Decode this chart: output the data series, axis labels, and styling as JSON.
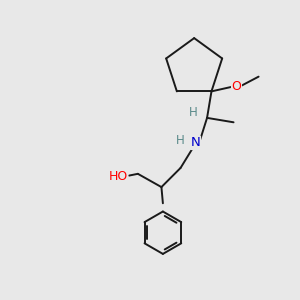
{
  "bg_color": "#e8e8e8",
  "bond_color": "#1a1a1a",
  "atom_colors": {
    "O": "#ff0000",
    "N": "#0000cc",
    "H": "#5a8a8a",
    "C": "#1a1a1a"
  },
  "figsize": [
    3.0,
    3.0
  ],
  "dpi": 100
}
